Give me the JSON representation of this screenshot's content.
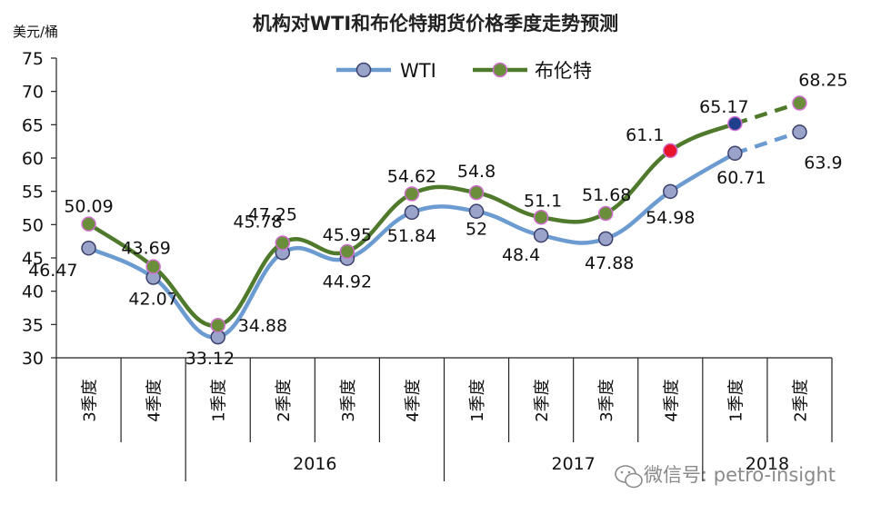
{
  "chart_data": {
    "type": "line",
    "title": "机构对WTI和布伦特期货价格季度走势预测",
    "ylabel": "美元/桶",
    "ylim": [
      30,
      75
    ],
    "yticks": [
      30,
      35,
      40,
      45,
      50,
      55,
      60,
      65,
      70,
      75
    ],
    "categories": [
      "3季度",
      "4季度",
      "1季度",
      "2季度",
      "3季度",
      "4季度",
      "1季度",
      "2季度",
      "3季度",
      "4季度",
      "1季度",
      "2季度"
    ],
    "years": [
      {
        "label": "",
        "from": 0,
        "to": 1
      },
      {
        "label": "2016",
        "from": 2,
        "to": 5
      },
      {
        "label": "2017",
        "from": 6,
        "to": 9
      },
      {
        "label": "2018",
        "from": 10,
        "to": 11
      }
    ],
    "legend_position": "top",
    "series": [
      {
        "name": "WTI",
        "color": "#6b9bd1",
        "marker_fill": "#9aa3c9",
        "values": [
          46.47,
          42.07,
          33.12,
          45.78,
          44.92,
          51.84,
          52,
          48.4,
          47.88,
          54.98,
          60.71,
          63.9
        ],
        "labels": [
          "46.47",
          "42.07",
          "33.12",
          "45.78",
          "44.92",
          "51.84",
          "52",
          "48.4",
          "47.88",
          "54.98",
          "60.71",
          "63.9"
        ],
        "forecast_from": 10
      },
      {
        "name": "布伦特",
        "color": "#4f7a2c",
        "marker_fill": "#6b8e3a",
        "marker_stroke": "#d06fcf",
        "values": [
          50.09,
          43.69,
          34.88,
          47.25,
          45.95,
          54.62,
          54.8,
          51.1,
          51.68,
          61.1,
          65.17,
          68.25
        ],
        "labels": [
          "50.09",
          "43.69",
          "34.88",
          "47.25",
          "45.95",
          "54.62",
          "54.8",
          "51.1",
          "51.68",
          "61.1",
          "65.17",
          "68.25"
        ],
        "forecast_from": 10,
        "special_markers": {
          "9": "#e8122a",
          "10": "#1f3f8c"
        }
      }
    ]
  },
  "watermark": "微信号: petro-insight"
}
